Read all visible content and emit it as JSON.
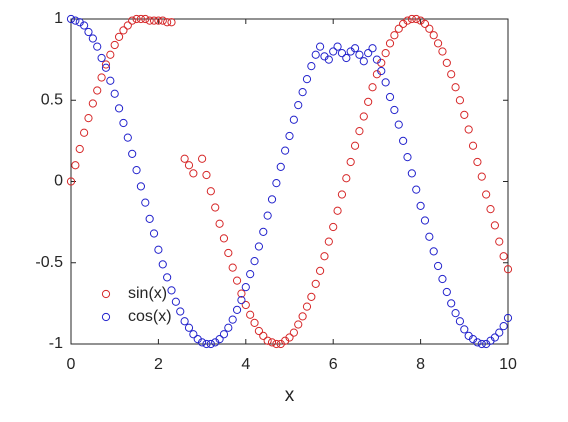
{
  "chart_data": {
    "type": "scatter",
    "x_label": "x",
    "x": [
      0,
      0.1,
      0.2,
      0.3,
      0.4,
      0.5,
      0.6,
      0.7,
      0.8,
      0.9,
      1,
      1.1,
      1.2,
      1.3,
      1.4,
      1.5,
      1.6,
      1.7,
      1.8,
      1.9,
      2,
      2.1,
      2.2,
      2.3,
      2.4,
      2.5,
      2.6,
      2.7,
      2.8,
      2.9,
      3,
      3.1,
      3.2,
      3.3,
      3.4,
      3.5,
      3.6,
      3.7,
      3.8,
      3.9,
      4,
      4.1,
      4.2,
      4.3,
      4.4,
      4.5,
      4.6,
      4.7,
      4.8,
      4.9,
      5,
      5.1,
      5.2,
      5.3,
      5.4,
      5.5,
      5.6,
      5.7,
      5.8,
      5.9,
      6,
      6.1,
      6.2,
      6.3,
      6.4,
      6.5,
      6.6,
      6.7,
      6.8,
      6.9,
      7,
      7.1,
      7.2,
      7.3,
      7.4,
      7.5,
      7.6,
      7.7,
      7.8,
      7.9,
      8,
      8.1,
      8.2,
      8.3,
      8.4,
      8.5,
      8.6,
      8.7,
      8.8,
      8.9,
      9,
      9.1,
      9.2,
      9.3,
      9.4,
      9.5,
      9.6,
      9.7,
      9.8,
      9.9,
      10
    ],
    "series": [
      {
        "name": "sin(x)",
        "color": "#d62728",
        "values": [
          0,
          0.1,
          0.2,
          0.3,
          0.39,
          0.48,
          0.56,
          0.64,
          0.72,
          0.78,
          0.84,
          0.89,
          0.93,
          0.96,
          0.99,
          1.0,
          1.0,
          1.0,
          0.99,
          0.99,
          0.99,
          0.99,
          0.98,
          0.98,
          null,
          null,
          0.14,
          0.1,
          0.05,
          null,
          0.14,
          0.04,
          -0.06,
          -0.16,
          -0.26,
          -0.35,
          -0.44,
          -0.53,
          -0.61,
          -0.69,
          -0.76,
          -0.82,
          -0.87,
          -0.92,
          -0.95,
          -0.98,
          -0.99,
          -1.0,
          -1.0,
          -0.98,
          -0.96,
          -0.93,
          -0.88,
          -0.83,
          -0.77,
          -0.71,
          -0.63,
          -0.55,
          -0.46,
          -0.37,
          -0.28,
          -0.18,
          -0.08,
          0.02,
          0.12,
          0.22,
          0.31,
          0.4,
          0.49,
          0.58,
          0.66,
          0.73,
          0.79,
          0.85,
          0.9,
          0.94,
          0.97,
          0.99,
          1.0,
          1.0,
          0.99,
          0.97,
          0.94,
          0.9,
          0.85,
          0.8,
          0.73,
          0.66,
          0.58,
          0.5,
          0.41,
          0.32,
          0.22,
          0.12,
          0.03,
          -0.08,
          -0.17,
          -0.27,
          -0.37,
          -0.46,
          -0.54
        ]
      },
      {
        "name": "cos(x)",
        "color": "#2222cc",
        "values": [
          1,
          0.99,
          0.98,
          0.96,
          0.92,
          0.88,
          0.83,
          0.76,
          0.7,
          0.62,
          0.54,
          0.45,
          0.36,
          0.27,
          0.17,
          0.07,
          -0.03,
          -0.13,
          -0.23,
          -0.32,
          -0.42,
          -0.51,
          -0.59,
          -0.67,
          -0.74,
          -0.8,
          -0.86,
          -0.9,
          -0.94,
          -0.97,
          -0.99,
          -1.0,
          -1.0,
          -0.99,
          -0.97,
          -0.94,
          -0.9,
          -0.85,
          -0.79,
          -0.73,
          -0.65,
          -0.57,
          -0.49,
          -0.4,
          -0.31,
          -0.21,
          -0.11,
          -0.01,
          0.09,
          0.19,
          0.28,
          0.38,
          0.47,
          0.55,
          0.63,
          0.71,
          0.78,
          0.83,
          0.77,
          0.75,
          0.8,
          0.83,
          0.79,
          0.76,
          0.8,
          0.82,
          0.78,
          0.74,
          0.79,
          0.82,
          0.75,
          0.68,
          0.61,
          0.52,
          0.44,
          0.35,
          0.25,
          0.15,
          0.05,
          -0.05,
          -0.15,
          -0.24,
          -0.34,
          -0.43,
          -0.52,
          -0.6,
          -0.68,
          -0.75,
          -0.81,
          -0.86,
          -0.91,
          -0.95,
          -0.97,
          -0.99,
          -1.0,
          -1.0,
          -0.98,
          -0.96,
          -0.93,
          -0.89,
          -0.84
        ]
      }
    ],
    "xlim": [
      0,
      10
    ],
    "xticks": [
      0,
      2,
      4,
      6,
      8,
      10
    ],
    "ylim": [
      -1,
      1
    ],
    "yticks": [
      -1,
      -0.5,
      0,
      0.5,
      1
    ],
    "grid": false,
    "legend": "lower-left"
  }
}
